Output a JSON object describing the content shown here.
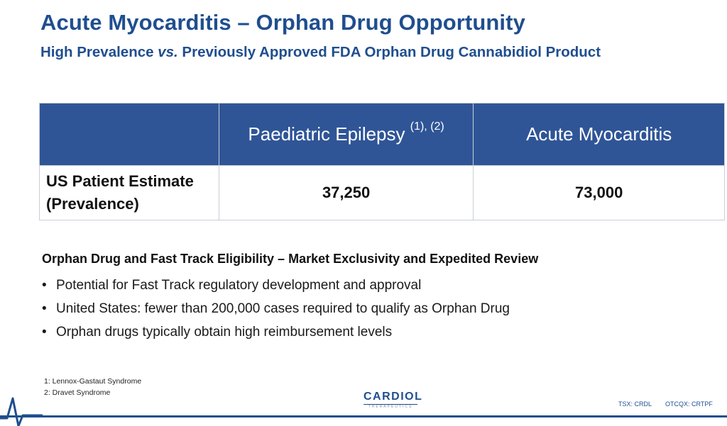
{
  "slide": {
    "title": "Acute Myocarditis – Orphan Drug Opportunity",
    "subtitle_part1": "High Prevalence ",
    "subtitle_italic": "vs.",
    "subtitle_part2": " Previously Approved FDA Orphan Drug Cannabidiol Product"
  },
  "table": {
    "header_blank": "",
    "col1_label": "Paediatric Epilepsy ",
    "col1_sup": "(1), (2)",
    "col2_label": "Acute Myocarditis",
    "row_label_line1": "US Patient Estimate",
    "row_label_line2": "(Prevalence)",
    "col1_value": "37,250",
    "col2_value": "73,000"
  },
  "section": {
    "heading": "Orphan Drug and Fast Track Eligibility – Market Exclusivity and Expedited Review",
    "bullet_char": "•",
    "bullets": [
      "Potential for Fast Track regulatory development and approval",
      "United States: fewer than 200,000 cases required to qualify as Orphan Drug",
      "Orphan drugs typically obtain high reimbursement levels"
    ]
  },
  "footnotes": [
    "1: Lennox-Gastaut Syndrome",
    "2: Dravet Syndrome"
  ],
  "footer": {
    "logo_text": "CARDIOL",
    "logo_subtext": "THERAPEUTICS",
    "ticker_tsx": "TSX: CRDL",
    "ticker_otc": "OTCQX: CRTPF",
    "brand_color": "#1f4e8f",
    "header_fill": "#2f5597"
  }
}
